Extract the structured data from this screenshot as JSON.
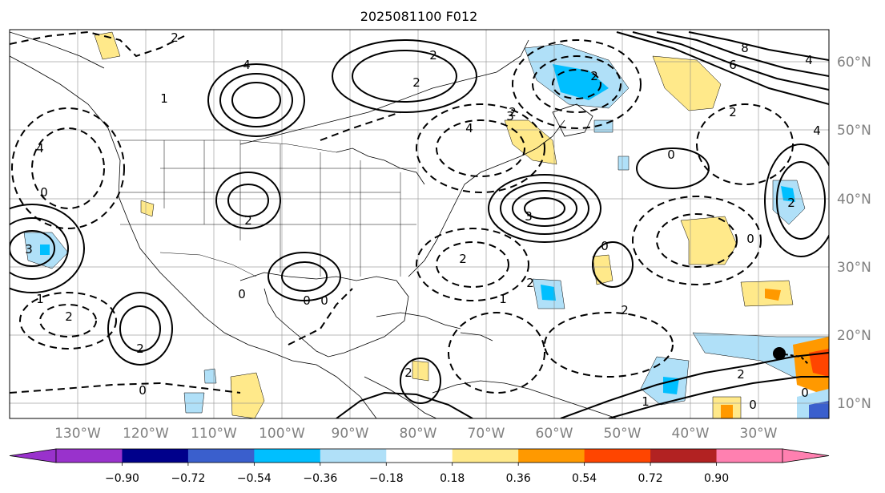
{
  "title": "2025081100 F012",
  "lon_labels": [
    "130°W",
    "120°W",
    "110°W",
    "100°W",
    "90°W",
    "80°W",
    "70°W",
    "60°W",
    "50°W",
    "40°W",
    "30°W"
  ],
  "lat_labels": [
    "60°N",
    "50°N",
    "40°N",
    "30°N",
    "20°N",
    "10°N"
  ],
  "colorbar": {
    "ticks": [
      "−0.90",
      "−0.72",
      "−0.54",
      "−0.36",
      "−0.18",
      "0.18",
      "0.36",
      "0.54",
      "0.72",
      "0.90"
    ],
    "under_color": "#9932cc",
    "colors": [
      "#9932cc",
      "#00008b",
      "#3a5fcd",
      "#00bfff",
      "#b0e0f8",
      "#ffffff",
      "#ffe98a",
      "#ff9900",
      "#ff4500",
      "#b22222",
      "#ff80b0"
    ],
    "over_color": "#ff80b0"
  },
  "contour_labels": [
    "2",
    "4",
    "6",
    "8",
    "2",
    "2",
    "2",
    "1",
    "2",
    "4",
    "2",
    "3",
    "0",
    "4",
    "2",
    "3",
    "0",
    "0",
    "4",
    "2",
    "0",
    "2",
    "1",
    "2",
    "0",
    "0",
    "2",
    "1",
    "2",
    "2",
    "0",
    "0",
    "1",
    "2",
    "2",
    "0",
    "0",
    "3",
    "4"
  ],
  "colors": {
    "contour": "#000000",
    "coast": "#000000",
    "grid": "#888888",
    "tick_label": "#808080"
  }
}
